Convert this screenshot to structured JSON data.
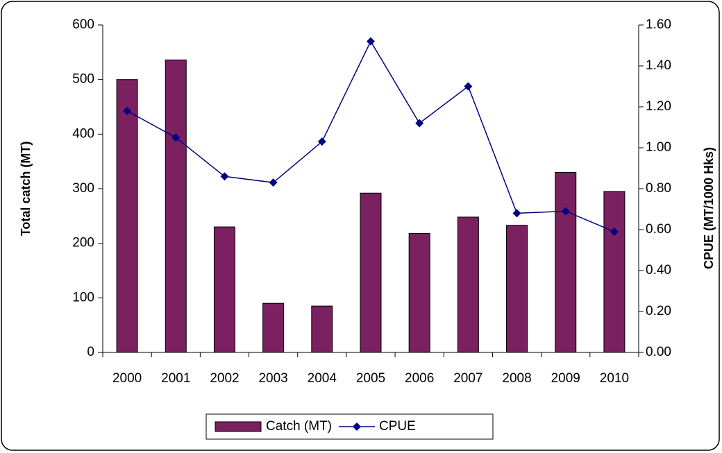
{
  "chart_data": {
    "type": "bar_line",
    "categories": [
      "2000",
      "2001",
      "2002",
      "2003",
      "2004",
      "2005",
      "2006",
      "2007",
      "2008",
      "2009",
      "2010"
    ],
    "series": [
      {
        "name": "Catch (MT)",
        "type": "bar",
        "color": "#7b2060",
        "values": [
          500,
          536,
          230,
          90,
          85,
          292,
          218,
          248,
          233,
          330,
          295
        ]
      },
      {
        "name": "CPUE",
        "type": "line",
        "axis": "y2",
        "color": "#000080",
        "values": [
          1.18,
          1.05,
          0.86,
          0.83,
          1.03,
          1.52,
          1.12,
          1.3,
          0.68,
          0.69,
          0.59
        ]
      }
    ],
    "ylabel": "Total catch (MT)",
    "y2label": "CPUE (MT/1000 Hks)",
    "ylim": [
      0,
      600
    ],
    "yticks": [
      0,
      100,
      200,
      300,
      400,
      500,
      600
    ],
    "y2lim": [
      0,
      1.6
    ],
    "y2ticks": [
      {
        "value": 0,
        "label": "0.00"
      },
      {
        "value": 0.2,
        "label": "0.20"
      },
      {
        "value": 0.4,
        "label": "0.40"
      },
      {
        "value": 0.6,
        "label": "0.60"
      },
      {
        "value": 0.8,
        "label": "0.80"
      },
      {
        "value": 1.0,
        "label": "1.00"
      },
      {
        "value": 1.2,
        "label": "1.20"
      },
      {
        "value": 1.4,
        "label": "1.40"
      },
      {
        "value": 1.6,
        "label": "1.60"
      }
    ],
    "legend": "bottom"
  }
}
